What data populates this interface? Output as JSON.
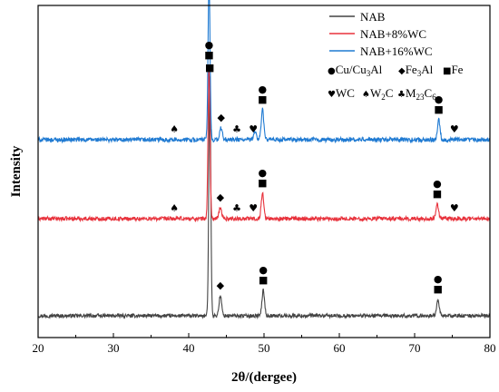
{
  "chart_data": {
    "type": "line",
    "xlabel": "2θ/(dergee)",
    "ylabel": "Intensity",
    "xlim": [
      20,
      80
    ],
    "xticks": [
      "20",
      "30",
      "40",
      "50",
      "60",
      "70",
      "80"
    ],
    "legend_position": "top-right",
    "series": [
      {
        "name": "NAB",
        "color": "#444444",
        "baseline": 0,
        "noise": 2.0,
        "peaks": [
          [
            42.8,
            262
          ],
          [
            44.2,
            22
          ],
          [
            49.9,
            28
          ],
          [
            73.1,
            18
          ]
        ]
      },
      {
        "name": "NAB+8%WC",
        "color": "#e8323c",
        "baseline": 107,
        "noise": 2.2,
        "peaks": [
          [
            42.7,
            169
          ],
          [
            44.2,
            12
          ],
          [
            49.8,
            28
          ],
          [
            73.0,
            16
          ]
        ]
      },
      {
        "name": "NAB+16%WC",
        "color": "#1f7ad2",
        "baseline": 194,
        "noise": 2.4,
        "peaks": [
          [
            42.7,
            177
          ],
          [
            44.3,
            13
          ],
          [
            48.8,
            10
          ],
          [
            49.8,
            33
          ],
          [
            73.2,
            22
          ]
        ]
      }
    ],
    "phase_legend": [
      {
        "symbol": "●",
        "label": "Cu/Cu",
        "sub": "3",
        "tail": "Al"
      },
      {
        "symbol": "◆",
        "label": "Fe",
        "sub": "3",
        "tail": "Al"
      },
      {
        "symbol": "■",
        "label": "Fe",
        "sub": "",
        "tail": ""
      },
      {
        "symbol": "♥",
        "label": "WC",
        "sub": "",
        "tail": ""
      },
      {
        "symbol": "♠",
        "label": "W",
        "sub": "2",
        "tail": "C"
      },
      {
        "symbol": "♣",
        "label": "M",
        "sub": "23",
        "tail": "C",
        "sub2": "6"
      }
    ],
    "annotations": [
      {
        "series": "NAB",
        "x": 42.8,
        "symbols": [
          "■"
        ]
      },
      {
        "series": "NAB",
        "x": 44.2,
        "symbols": [
          "◆"
        ]
      },
      {
        "series": "NAB",
        "x": 49.9,
        "symbols": [
          "●",
          "■"
        ]
      },
      {
        "series": "NAB",
        "x": 73.1,
        "symbols": [
          "●",
          "■"
        ]
      },
      {
        "series": "NAB+8%WC",
        "x": 38.1,
        "symbols": [
          "♠"
        ]
      },
      {
        "series": "NAB+8%WC",
        "x": 42.7,
        "symbols": [
          "●",
          "■"
        ]
      },
      {
        "series": "NAB+8%WC",
        "x": 44.2,
        "symbols": [
          "◆"
        ]
      },
      {
        "series": "NAB+8%WC",
        "x": 46.4,
        "symbols": [
          "♣"
        ]
      },
      {
        "series": "NAB+8%WC",
        "x": 48.1,
        "symbols": [
          "♥"
        ]
      },
      {
        "series": "NAB+8%WC",
        "x": 49.8,
        "symbols": [
          "●",
          "■"
        ]
      },
      {
        "series": "NAB+8%WC",
        "x": 73.0,
        "symbols": [
          "●",
          "■"
        ]
      },
      {
        "series": "NAB+8%WC",
        "x": 74.8,
        "symbols": [
          "♥"
        ]
      },
      {
        "series": "NAB+16%WC",
        "x": 38.1,
        "symbols": [
          "♠"
        ]
      },
      {
        "series": "NAB+16%WC",
        "x": 42.7,
        "symbols": [
          "●",
          "■"
        ]
      },
      {
        "series": "NAB+16%WC",
        "x": 44.3,
        "symbols": [
          "◆"
        ]
      },
      {
        "series": "NAB+16%WC",
        "x": 46.4,
        "symbols": [
          "♣"
        ]
      },
      {
        "series": "NAB+16%WC",
        "x": 48.1,
        "symbols": [
          "♥"
        ]
      },
      {
        "series": "NAB+16%WC",
        "x": 49.8,
        "symbols": [
          "●",
          "■"
        ]
      },
      {
        "series": "NAB+16%WC",
        "x": 73.2,
        "symbols": [
          "●",
          "■"
        ]
      },
      {
        "series": "NAB+16%WC",
        "x": 74.8,
        "symbols": [
          "♥"
        ]
      }
    ]
  }
}
